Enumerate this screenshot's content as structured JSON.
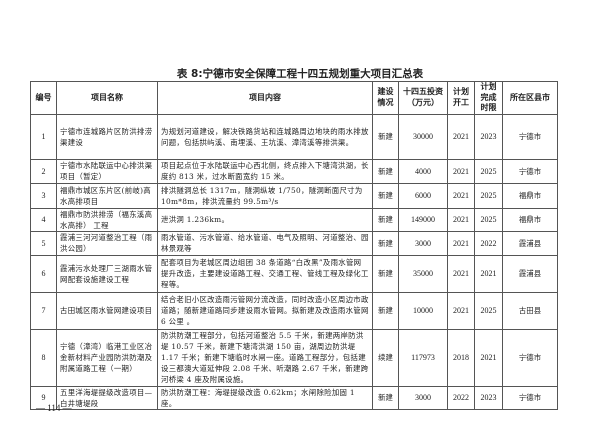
{
  "title": "表 8:宁德市安全保障工程十四五规划重大项目汇总表",
  "headers": [
    "编号",
    "项目名称",
    "项目内容",
    "建设情况",
    "十四五投资（万元）",
    "计划开工",
    "计划完成时限",
    "所在区县市"
  ],
  "rows": [
    {
      "no": "1",
      "name": "宁德市连城路片区防洪排涝渠建设",
      "content": "为规划河道建设，解决铁路货站和连城路周边地块的雨水排放问题，包括拱屿溪、南埋溪、王坑溪、漳湾溪等排洪渠。",
      "status": "新建",
      "investment": "30000",
      "start": "2021",
      "end": "2023",
      "county": "宁德市"
    },
    {
      "no": "2",
      "name": "宁德市水陆联运中心排洪渠项目（暂定）",
      "content": "项目起点位于水陆联运中心西北侧，终点排入下塘湾洪湖，长度约 813 米，过水断面宽约 15 米。",
      "status": "新建",
      "investment": "4000",
      "start": "2021",
      "end": "2025",
      "county": "宁德市"
    },
    {
      "no": "3",
      "name": "福鼎市城区东片区(前岐)高水高排项目",
      "content": "排洪隧洞总长 1317m，隧洞纵坡 1/750，隧洞断面尺寸为 10m*8m，排洪流量约 99.5m³/s",
      "status": "新建",
      "investment": "6000",
      "start": "2021",
      "end": "2025",
      "county": "福鼎市"
    },
    {
      "no": "4",
      "name": "福鼎市防洪排涝（福东溪高水高排） 工程",
      "content": "泄洪洞 1.236km。",
      "status": "新建",
      "investment": "149000",
      "start": "2021",
      "end": "2025",
      "county": "福鼎市"
    },
    {
      "no": "5",
      "name": "霞浦三河河道整治工程（雨洪公园）",
      "content": "雨水管道、污水管道、给水管道、电气及照明、河道整治、园林景观等",
      "status": "新建",
      "investment": "3000",
      "start": "2021",
      "end": "2022",
      "county": "霞浦县"
    },
    {
      "no": "6",
      "name": "霞浦污水处理厂三湖雨水管网配套设施建设工程",
      "content": "配套项目为老城区周边组团 38 条道路“白改黑”及雨水管网提升改造，主要建设道路工程、交通工程、管线工程及绿化工程等。",
      "status": "新建",
      "investment": "35000",
      "start": "2021",
      "end": "2021",
      "county": "霞浦县"
    },
    {
      "no": "7",
      "name": "古田城区雨水管网建设项目",
      "content": "结合老旧小区改造雨污管网分流改造，同时改造小区周边市政道路；随新建道路同步建设雨水管网。拟新建及改造雨水管网 6 公里 。",
      "status": "新建",
      "investment": "10000",
      "start": "2021",
      "end": "2025",
      "county": "古田县"
    },
    {
      "no": "8",
      "name": "宁德（漳湾）临港工业区冶金新材料产业园防洪防潮及附属道路工程（一期）",
      "content": "防洪防潮工程部分，包括河道整治 5.5 千米，新建两岸防洪堤 10.57 千米，新建下塘湾洪湖 150 亩，湖周边防洪堤 1.17 千米；新建下塘临时水闸一座。道路工程部分，包括建设三都澳大道延伸段 2.08 千米、听潮路 2.67 千米，新建跨河桥梁 4 座及附属设施。",
      "status": "续建",
      "investment": "117973",
      "start": "2018",
      "end": "2021",
      "county": "宁德市"
    },
    {
      "no": "9",
      "name": "五里洋海堤提级改造项目—白井塘堤段",
      "content": "防洪防潮工程：海堤提级改造 0.62km；水闸除险加固 1 座。",
      "status": "新建",
      "investment": "3000",
      "start": "2022",
      "end": "2023",
      "county": "宁德市"
    }
  ],
  "page_number": "— 114 —"
}
